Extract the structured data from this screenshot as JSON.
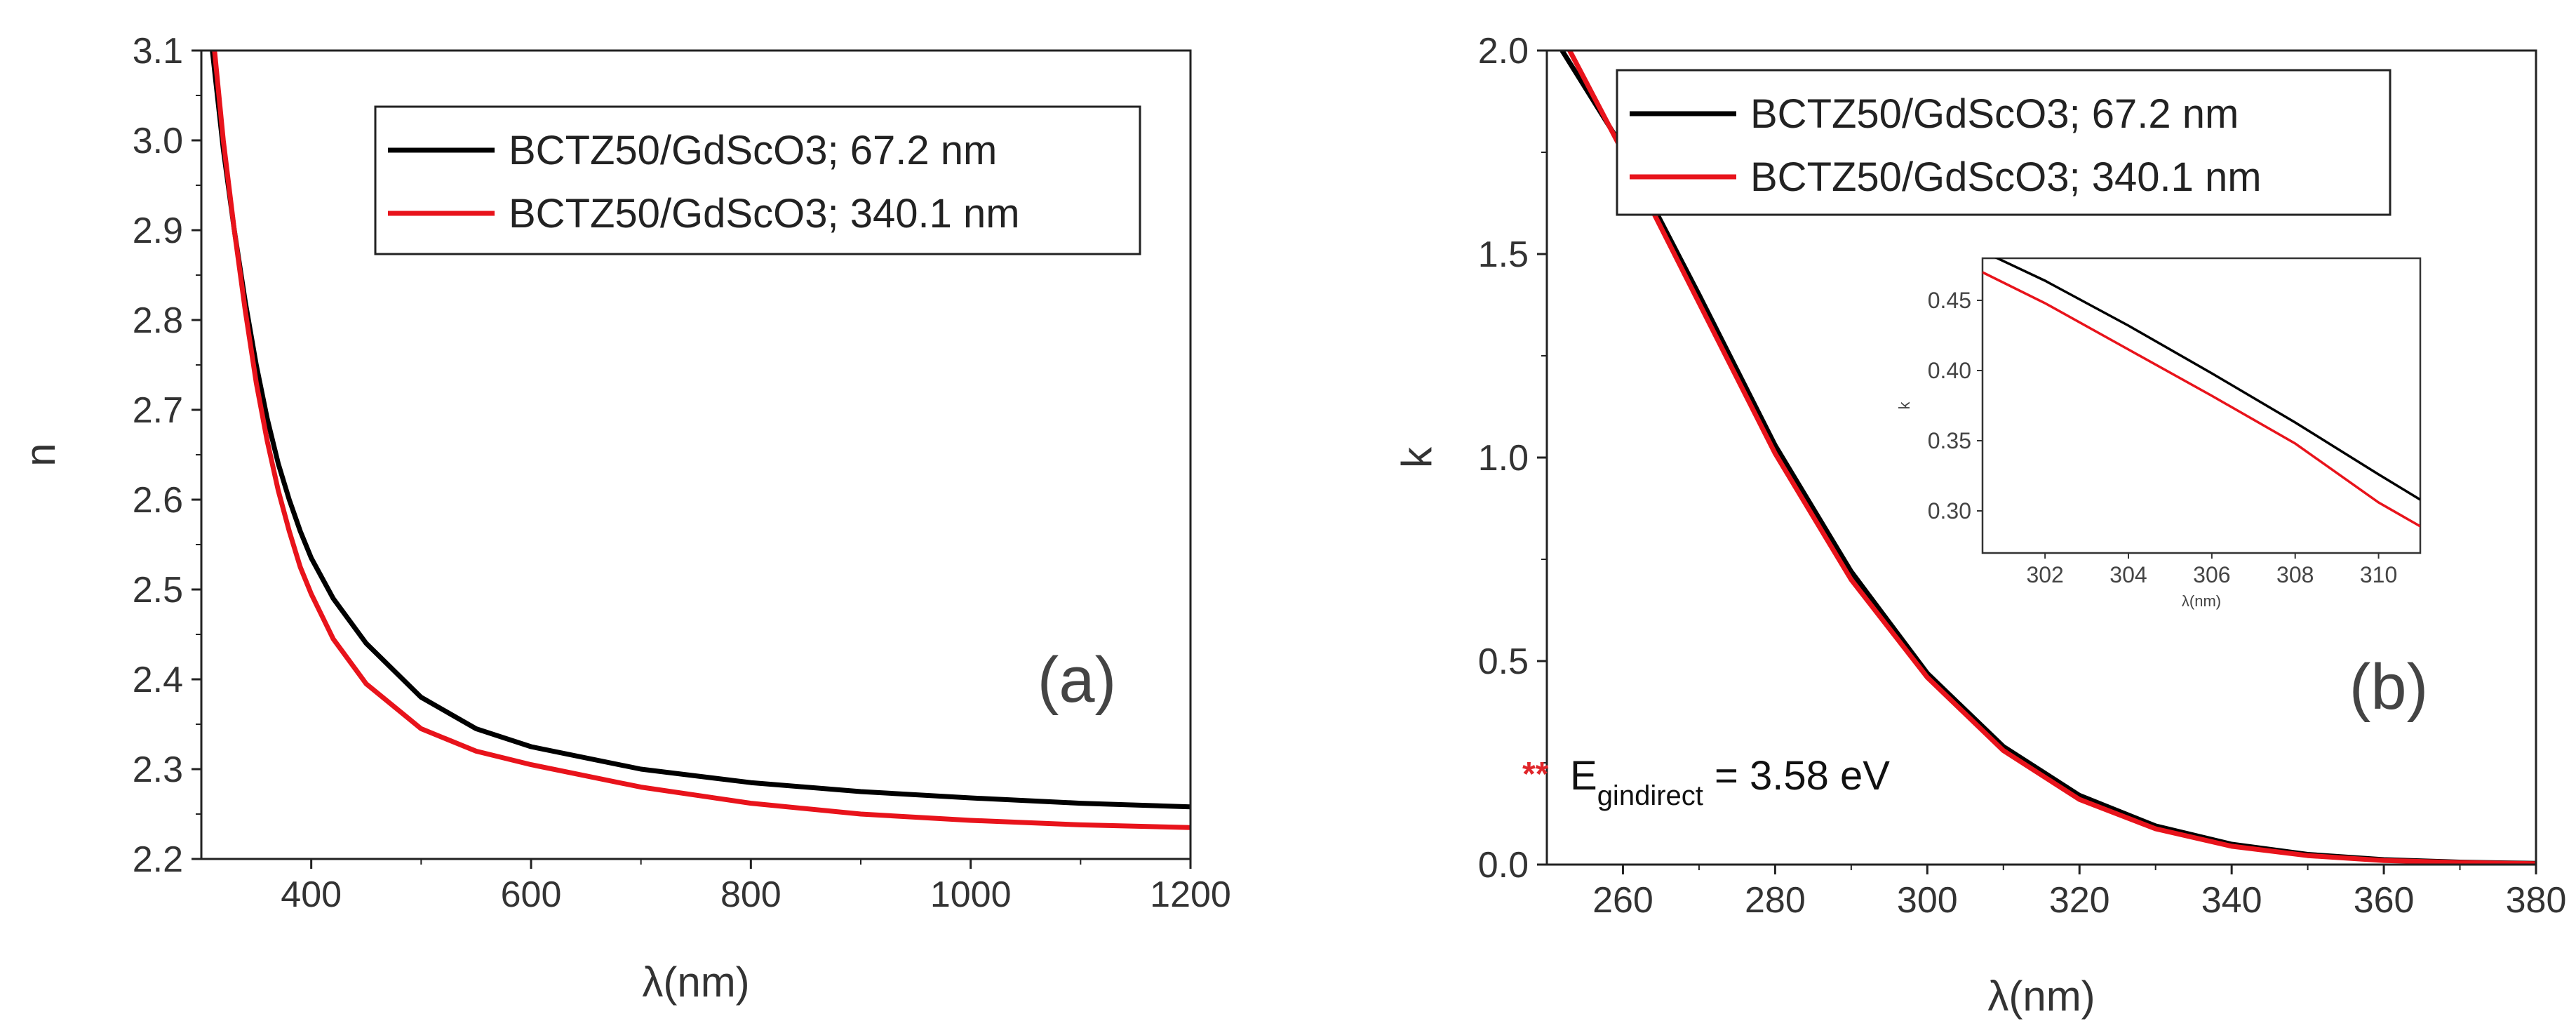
{
  "chart_data": [
    {
      "type": "line",
      "panel_label": "(a)",
      "xlabel": "λ(nm)",
      "ylabel": "n",
      "xlim": [
        300,
        1200
      ],
      "ylim": [
        2.2,
        3.1
      ],
      "xticks": [
        "400",
        "600",
        "800",
        "1000",
        "1200"
      ],
      "yticks": [
        "2.2",
        "2.3",
        "2.4",
        "2.5",
        "2.6",
        "2.7",
        "2.8",
        "2.9",
        "3.0",
        "3.1"
      ],
      "legend_position": "top-right",
      "series": [
        {
          "name": "BCTZ50/GdScO3; 67.2 nm",
          "color": "#000000",
          "x": [
            310,
            320,
            330,
            340,
            350,
            360,
            370,
            380,
            390,
            400,
            420,
            450,
            500,
            550,
            600,
            700,
            800,
            900,
            1000,
            1100,
            1200
          ],
          "y": [
            3.1,
            2.99,
            2.9,
            2.82,
            2.75,
            2.69,
            2.64,
            2.6,
            2.565,
            2.535,
            2.49,
            2.44,
            2.38,
            2.345,
            2.325,
            2.3,
            2.285,
            2.275,
            2.268,
            2.262,
            2.258
          ]
        },
        {
          "name": "BCTZ50/GdScO3; 340.1 nm",
          "color": "#e8131b",
          "x": [
            312,
            320,
            330,
            340,
            350,
            360,
            370,
            380,
            390,
            400,
            420,
            450,
            500,
            550,
            600,
            700,
            800,
            900,
            1000,
            1100,
            1200
          ],
          "y": [
            3.1,
            3.0,
            2.9,
            2.81,
            2.73,
            2.665,
            2.61,
            2.565,
            2.525,
            2.495,
            2.445,
            2.395,
            2.345,
            2.32,
            2.305,
            2.28,
            2.262,
            2.25,
            2.243,
            2.238,
            2.235
          ]
        }
      ]
    },
    {
      "type": "line",
      "panel_label": "(b)",
      "xlabel": "λ(nm)",
      "ylabel": "k",
      "xlim": [
        250,
        380
      ],
      "ylim": [
        0.0,
        2.0
      ],
      "xticks": [
        "260",
        "280",
        "300",
        "320",
        "340",
        "360",
        "380"
      ],
      "yticks": [
        "0.0",
        "0.5",
        "1.0",
        "1.5",
        "2.0"
      ],
      "legend_position": "top",
      "annotation": {
        "stars": "**",
        "prefix": "E",
        "subscript": "gindirect",
        "suffix": " = 3.58 eV"
      },
      "series": [
        {
          "name": "BCTZ50/GdScO3; 67.2 nm",
          "color": "#000000",
          "x": [
            252,
            260,
            270,
            280,
            290,
            300,
            310,
            320,
            330,
            340,
            350,
            360,
            370,
            380
          ],
          "y": [
            2.0,
            1.76,
            1.4,
            1.03,
            0.72,
            0.47,
            0.29,
            0.17,
            0.095,
            0.05,
            0.025,
            0.012,
            0.006,
            0.003
          ]
        },
        {
          "name": "BCTZ50/GdScO3; 340.1 nm",
          "color": "#e8131b",
          "x": [
            253,
            260,
            270,
            280,
            290,
            300,
            310,
            320,
            330,
            340,
            350,
            360,
            370,
            380
          ],
          "y": [
            2.0,
            1.75,
            1.38,
            1.01,
            0.7,
            0.46,
            0.28,
            0.16,
            0.088,
            0.045,
            0.022,
            0.01,
            0.005,
            0.002
          ]
        }
      ],
      "inset": {
        "type": "line",
        "xlabel": "λ(nm)",
        "ylabel": "k",
        "xlim": [
          300.5,
          311
        ],
        "ylim": [
          0.27,
          0.48
        ],
        "xticks": [
          "302",
          "304",
          "306",
          "308",
          "310"
        ],
        "yticks": [
          "0.30",
          "0.35",
          "0.40",
          "0.45"
        ],
        "series": [
          {
            "name": "BCTZ50/GdScO3; 67.2 nm",
            "color": "#000000",
            "x": [
              300.5,
              302,
              304,
              306,
              308,
              310,
              311
            ],
            "y": [
              0.485,
              0.464,
              0.432,
              0.398,
              0.363,
              0.326,
              0.308
            ]
          },
          {
            "name": "BCTZ50/GdScO3; 340.1 nm",
            "color": "#e8131b",
            "x": [
              300.5,
              302,
              304,
              306,
              308,
              310,
              311
            ],
            "y": [
              0.47,
              0.448,
              0.415,
              0.382,
              0.348,
              0.306,
              0.289
            ]
          }
        ]
      }
    }
  ]
}
